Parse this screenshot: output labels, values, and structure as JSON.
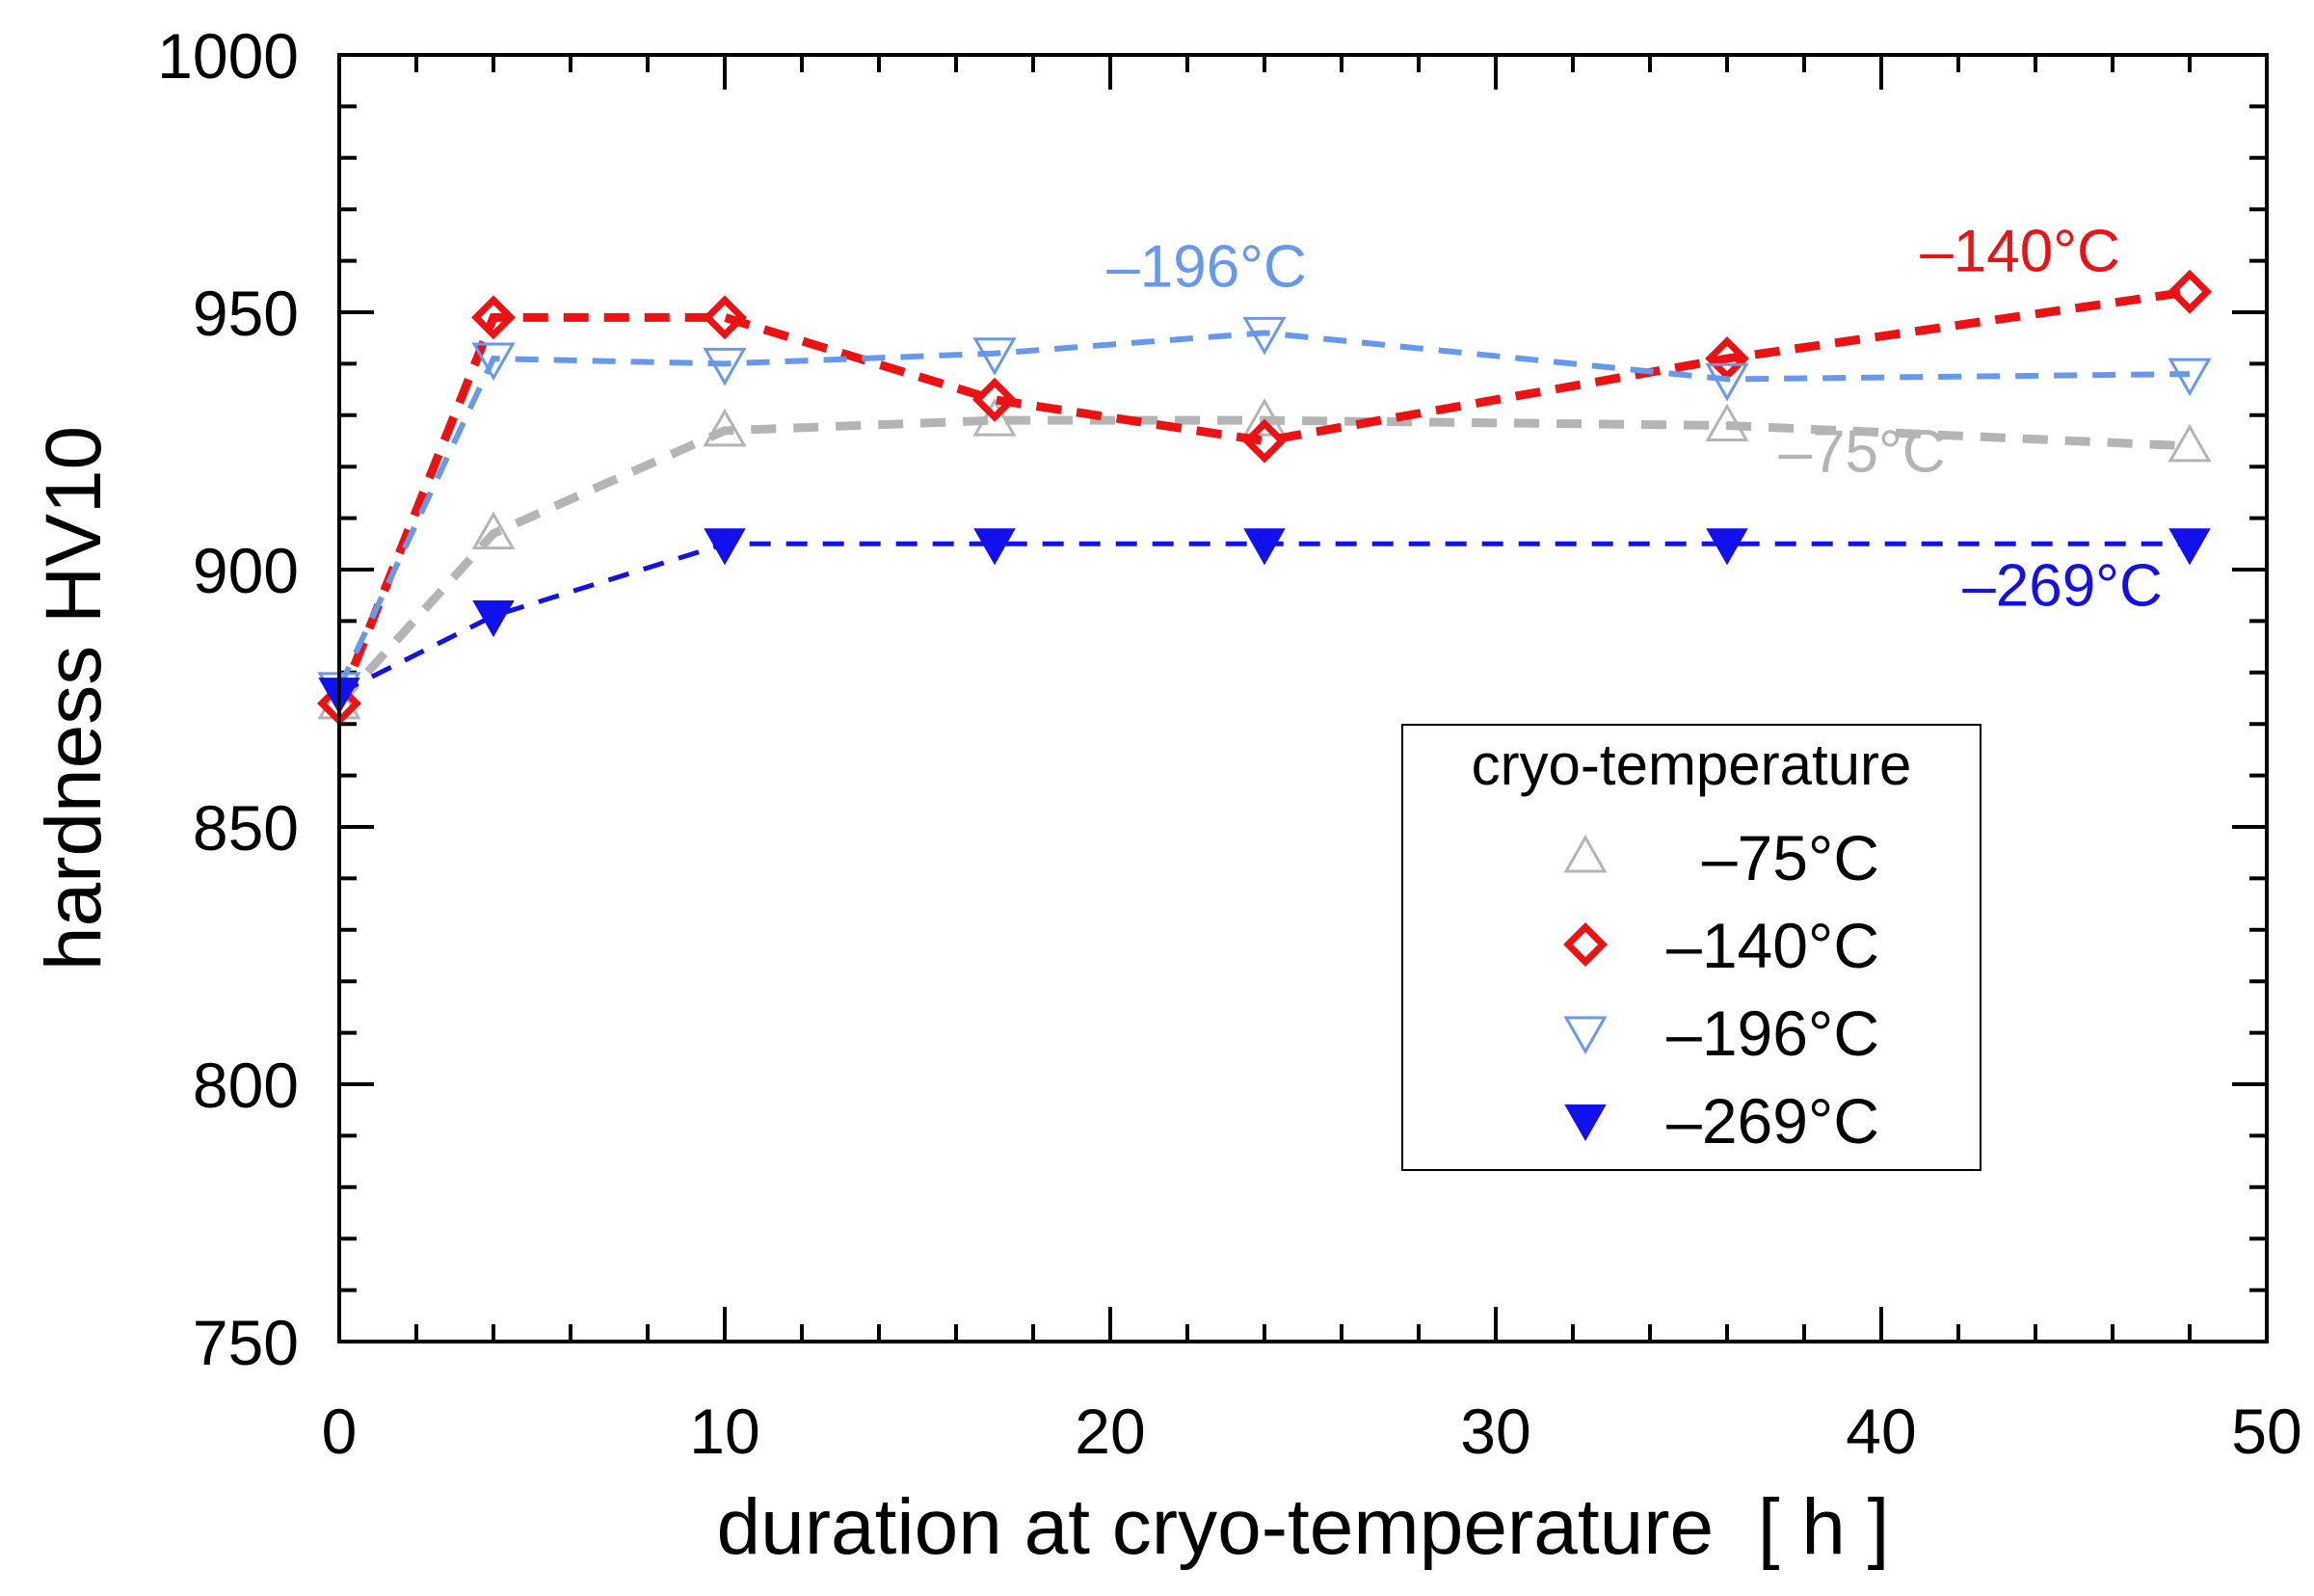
{
  "chart_data": {
    "type": "line",
    "title": "",
    "xlabel": "duration at cryo-temperature  [ h ]",
    "ylabel": "hardness HV10",
    "xlim": [
      0,
      50
    ],
    "ylim": [
      750,
      1000
    ],
    "xticks": [
      0,
      10,
      20,
      30,
      40,
      50
    ],
    "yticks": [
      750,
      800,
      850,
      900,
      950,
      1000
    ],
    "xtick_labels": [
      "0",
      "10",
      "20",
      "30",
      "40",
      "50"
    ],
    "ytick_labels": [
      "750",
      "800",
      "850",
      "900",
      "950",
      "1000"
    ],
    "x": [
      0,
      4,
      10,
      17,
      24,
      36,
      48
    ],
    "series": [
      {
        "name": "–75°C",
        "color": "#b4b4b4",
        "marker": "triangle-up-open",
        "values": [
          874,
          907,
          927,
          929,
          929,
          928,
          924
        ]
      },
      {
        "name": "–140°C",
        "color": "#ee1111",
        "marker": "diamond-open",
        "values": [
          874,
          949,
          949,
          933,
          925,
          941,
          954
        ]
      },
      {
        "name": "–196°C",
        "color": "#6699ee",
        "marker": "triangle-down-open",
        "values": [
          877,
          941,
          940,
          942,
          946,
          937,
          938
        ]
      },
      {
        "name": "–269°C",
        "color": "#1111ee",
        "marker": "triangle-down-filled",
        "values": [
          876,
          891,
          905,
          905,
          905,
          905,
          905
        ]
      }
    ],
    "annotations": [
      {
        "text": "–196°C",
        "x": 22.5,
        "y": 955,
        "color": "#6699ee"
      },
      {
        "text": "–140°C",
        "x": 43.6,
        "y": 958,
        "color": "#ee1111"
      },
      {
        "text": "–75°C",
        "x": 39.5,
        "y": 919,
        "color": "#b4b4b4"
      },
      {
        "text": "–269°C",
        "x": 44.7,
        "y": 893,
        "color": "#1111ee"
      }
    ],
    "legend": {
      "title": "cryo-temperature",
      "position": "lower-right"
    }
  }
}
